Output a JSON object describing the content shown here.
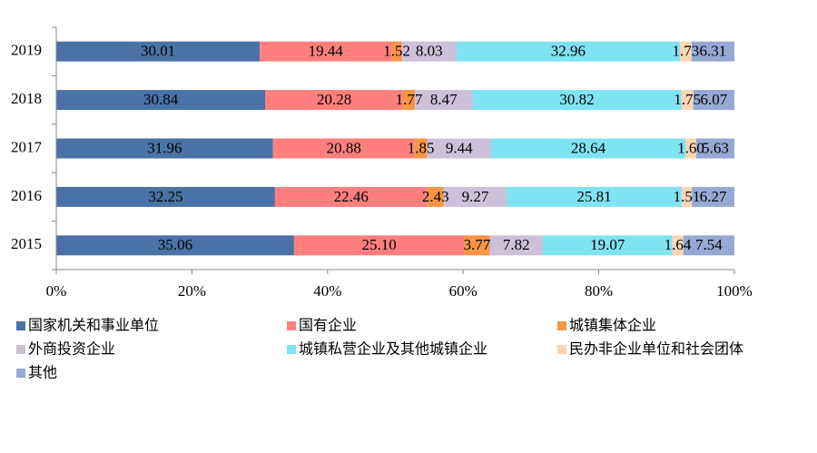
{
  "chart_data": {
    "type": "stacked-bar-horizontal",
    "categories": [
      "2019",
      "2018",
      "2017",
      "2016",
      "2015"
    ],
    "series": [
      {
        "name": "国家机关和事业单位",
        "color": "#4a72a6",
        "values": [
          30.01,
          30.84,
          31.96,
          32.25,
          35.06
        ]
      },
      {
        "name": "国有企业",
        "color": "#ff7f7f",
        "values": [
          19.44,
          20.28,
          20.88,
          22.46,
          25.1
        ],
        "value_labels": [
          "19.44",
          "20.28",
          "20.88",
          "22.46",
          "25.10"
        ]
      },
      {
        "name": "城镇集体企业",
        "color": "#f79646",
        "values": [
          1.52,
          1.77,
          1.85,
          2.43,
          3.77
        ]
      },
      {
        "name": "外商投资企业",
        "color": "#ccc0da",
        "values": [
          8.03,
          8.47,
          9.44,
          9.27,
          7.82
        ]
      },
      {
        "name": "城镇私营企业及其他城镇企业",
        "color": "#7fe3f2",
        "values": [
          32.96,
          30.82,
          28.64,
          25.81,
          19.07
        ]
      },
      {
        "name": "民办非企业单位和社会团体",
        "color": "#fcd5b5",
        "values": [
          1.73,
          1.75,
          1.6,
          1.51,
          1.64
        ],
        "value_labels": [
          "1.73",
          "1.75",
          "1.60",
          "1.51",
          "1.64"
        ]
      },
      {
        "name": "其他",
        "color": "#95a9d2",
        "values": [
          6.31,
          6.07,
          5.63,
          6.27,
          7.54
        ]
      }
    ],
    "xlim": [
      0,
      100
    ],
    "xticks": [
      {
        "value": 0,
        "label": "0%"
      },
      {
        "value": 20,
        "label": "20%"
      },
      {
        "value": 40,
        "label": "40%"
      },
      {
        "value": 60,
        "label": "60%"
      },
      {
        "value": 80,
        "label": "80%"
      },
      {
        "value": 100,
        "label": "100%"
      }
    ],
    "legend": "bottom"
  }
}
